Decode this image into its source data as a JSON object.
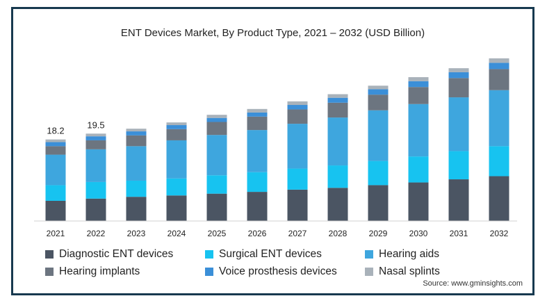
{
  "chart_data": {
    "type": "bar",
    "stacked": true,
    "title": "ENT Devices Market, By Product Type, 2021 – 2032 (USD Billion)",
    "categories": [
      "2021",
      "2022",
      "2023",
      "2024",
      "2025",
      "2026",
      "2027",
      "2028",
      "2029",
      "2030",
      "2031",
      "2032"
    ],
    "series": [
      {
        "name": "Diagnostic ENT devices",
        "color": "#4b5563",
        "values": [
          4.5,
          5.0,
          5.4,
          5.7,
          6.1,
          6.5,
          7.0,
          7.4,
          8.0,
          8.6,
          9.3,
          10.0
        ]
      },
      {
        "name": "Surgical ENT devices",
        "color": "#17c3f0",
        "values": [
          3.5,
          3.7,
          3.6,
          3.8,
          4.1,
          4.4,
          4.7,
          5.0,
          5.4,
          5.8,
          6.3,
          6.7
        ]
      },
      {
        "name": "Hearing aids",
        "color": "#3ea6de",
        "values": [
          6.8,
          7.3,
          7.7,
          8.5,
          9.0,
          9.4,
          10.0,
          10.7,
          11.3,
          11.7,
          12.0,
          12.5
        ]
      },
      {
        "name": "Hearing implants",
        "color": "#6c7580",
        "values": [
          1.9,
          2.0,
          2.4,
          2.5,
          2.9,
          3.0,
          3.2,
          3.3,
          3.5,
          3.8,
          4.3,
          4.7
        ]
      },
      {
        "name": "Voice prosthesis devices",
        "color": "#3b8fd8",
        "values": [
          0.9,
          0.9,
          0.9,
          0.9,
          0.9,
          0.9,
          1.0,
          1.1,
          1.2,
          1.3,
          1.3,
          1.4
        ]
      },
      {
        "name": "Nasal splints",
        "color": "#a9b2ba",
        "values": [
          0.6,
          0.6,
          0.6,
          0.6,
          0.7,
          0.8,
          0.8,
          0.8,
          0.8,
          0.9,
          0.9,
          1.0
        ]
      }
    ],
    "data_labels": [
      {
        "category": "2021",
        "label": "18.2"
      },
      {
        "category": "2022",
        "label": "19.5"
      }
    ],
    "ylim": [
      0,
      38
    ],
    "y_axis_visible": false,
    "grid": false,
    "legend_position": "bottom",
    "source": "Source: www.gminsights.com"
  }
}
